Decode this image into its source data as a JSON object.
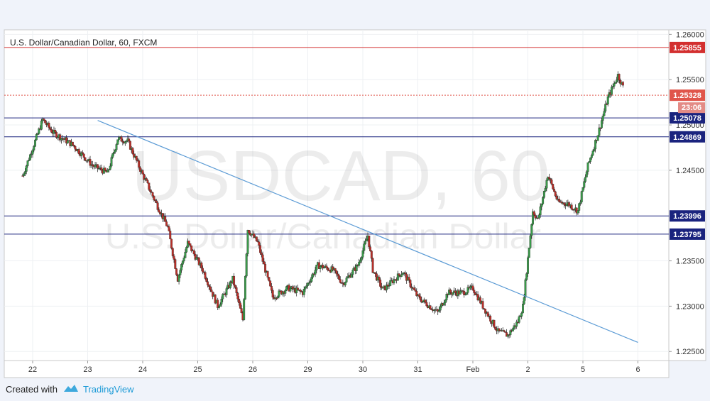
{
  "chart_data": {
    "type": "candlestick",
    "title": "U.S. Dollar/Canadian Dollar, 60, FXCM",
    "watermark": {
      "symbol": "USDCAD, 60",
      "name": "U.S. Dollar/Canadian Dollar"
    },
    "ylim": [
      1.224,
      1.2605
    ],
    "y_ticks": [
      "1.26000",
      "1.25500",
      "1.25000",
      "1.24500",
      "1.23500",
      "1.23000",
      "1.22500"
    ],
    "x_ticks": [
      "22",
      "23",
      "24",
      "25",
      "26",
      "29",
      "30",
      "31",
      "Feb",
      "2",
      "5",
      "6"
    ],
    "current_price": {
      "value": 1.25328,
      "label": "1.25328",
      "countdown": "23:06",
      "color": "#e0554b"
    },
    "horizontal_levels": [
      {
        "value": 1.25855,
        "label": "1.25855",
        "color": "#d32f2f"
      },
      {
        "value": 1.25078,
        "label": "1.25078",
        "color": "#1a237e"
      },
      {
        "value": 1.24869,
        "label": "1.24869",
        "color": "#1a237e"
      },
      {
        "value": 1.23996,
        "label": "1.23996",
        "color": "#1a237e"
      },
      {
        "value": 1.23795,
        "label": "1.23795",
        "color": "#1a237e"
      }
    ],
    "trendline": {
      "from": {
        "bar": 15,
        "price": 1.2505
      },
      "to": {
        "bar": 123,
        "price": 1.226
      },
      "color": "#5b9bd5"
    },
    "up_color": "#3a9a4a",
    "down_color": "#b8302a",
    "bars_per_day": 11,
    "path_points": [
      [
        0,
        1.2444
      ],
      [
        3,
        1.249
      ],
      [
        4,
        1.2506
      ],
      [
        6,
        1.2492
      ],
      [
        10,
        1.2478
      ],
      [
        14,
        1.2455
      ],
      [
        17,
        1.2447
      ],
      [
        19,
        1.2485
      ],
      [
        21,
        1.2482
      ],
      [
        24,
        1.2445
      ],
      [
        27,
        1.241
      ],
      [
        29,
        1.2387
      ],
      [
        31,
        1.233
      ],
      [
        33,
        1.237
      ],
      [
        36,
        1.234
      ],
      [
        39,
        1.23
      ],
      [
        42,
        1.233
      ],
      [
        44,
        1.2285
      ],
      [
        45,
        1.2385
      ],
      [
        47,
        1.237
      ],
      [
        50,
        1.231
      ],
      [
        53,
        1.232
      ],
      [
        56,
        1.2315
      ],
      [
        59,
        1.2345
      ],
      [
        62,
        1.234
      ],
      [
        64,
        1.2325
      ],
      [
        67,
        1.2345
      ],
      [
        69,
        1.2378
      ],
      [
        70,
        1.234
      ],
      [
        72,
        1.2318
      ],
      [
        76,
        1.2338
      ],
      [
        79,
        1.231
      ],
      [
        83,
        1.2293
      ],
      [
        85,
        1.2315
      ],
      [
        88,
        1.2315
      ],
      [
        90,
        1.232
      ],
      [
        92,
        1.23
      ],
      [
        95,
        1.2272
      ],
      [
        97,
        1.2268
      ],
      [
        99,
        1.2283
      ],
      [
        100,
        1.23
      ],
      [
        102,
        1.2405
      ],
      [
        103,
        1.2395
      ],
      [
        105,
        1.2445
      ],
      [
        107,
        1.2415
      ],
      [
        109,
        1.2413
      ],
      [
        111,
        1.2405
      ],
      [
        113,
        1.2455
      ],
      [
        115,
        1.249
      ],
      [
        117,
        1.253
      ],
      [
        119,
        1.2555
      ],
      [
        120,
        1.2542
      ]
    ]
  },
  "footer": {
    "created_with": "Created with",
    "brand": "TradingView"
  }
}
